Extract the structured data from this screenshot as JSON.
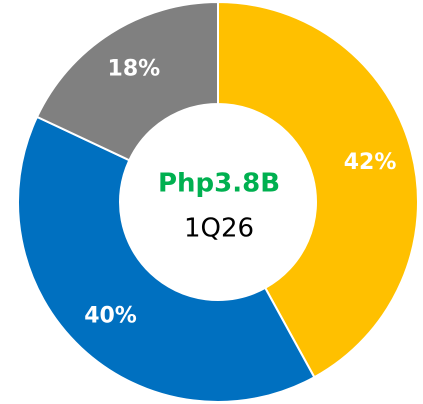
{
  "chart_data": {
    "type": "donut",
    "center_label": "Php3.8B",
    "center_sublabel": "1Q26",
    "values": [
      42,
      40,
      18
    ],
    "value_labels": [
      "42%",
      "40%",
      "18%"
    ],
    "colors": [
      "#ffc000",
      "#0070c0",
      "#808080"
    ]
  }
}
